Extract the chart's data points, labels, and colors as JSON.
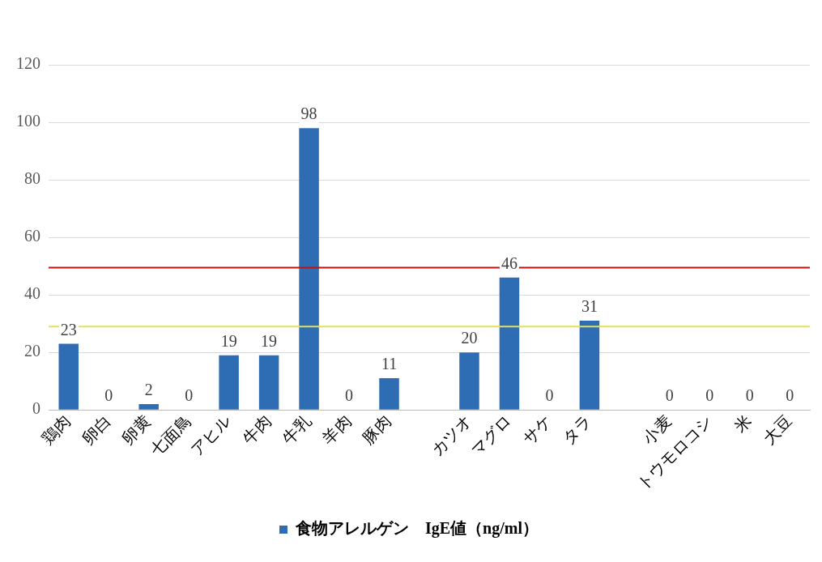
{
  "chart_data": {
    "type": "bar",
    "categories": [
      "鶏肉",
      "卵白",
      "卵黄",
      "七面鳥",
      "アヒル",
      "牛肉",
      "牛乳",
      "羊肉",
      "豚肉",
      null,
      "カツオ",
      "マグロ",
      "サケ",
      "タラ",
      null,
      "小麦",
      "トウモロコシ",
      "米",
      "大豆"
    ],
    "series": [
      {
        "name": "食物アレルゲン　IgE値（ng/ml）",
        "color": "#2e6db4",
        "values": [
          23,
          0,
          2,
          0,
          19,
          19,
          98,
          0,
          11,
          null,
          20,
          46,
          0,
          31,
          null,
          0,
          0,
          0,
          0
        ]
      }
    ],
    "ylim": [
      0,
      120
    ],
    "yticks": [
      0,
      20,
      40,
      60,
      80,
      100,
      120
    ],
    "grid": "y",
    "legend": "bottom",
    "data_labels": true,
    "ref_lines": [
      {
        "axis": "y",
        "value": 49.5,
        "color": "#c0120f"
      },
      {
        "axis": "y",
        "value": 29,
        "color": "#e2e05a"
      }
    ]
  }
}
